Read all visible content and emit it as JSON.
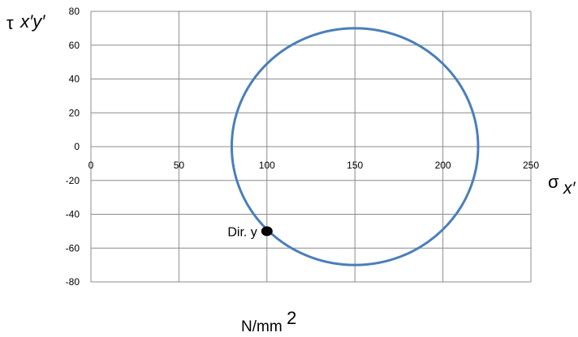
{
  "chart_data": {
    "type": "line",
    "title": "",
    "xlabel": {
      "symbol": "σ",
      "subscript": "x′"
    },
    "ylabel": {
      "symbol": "τ",
      "subscript": "x′y′"
    },
    "unit_label": {
      "base": "N/mm",
      "superscript": "2"
    },
    "xlim": [
      0,
      250
    ],
    "ylim": [
      -80,
      80
    ],
    "x_ticks": [
      0,
      50,
      100,
      150,
      200,
      250
    ],
    "y_ticks": [
      80,
      60,
      40,
      20,
      0,
      -20,
      -40,
      -60,
      -80
    ],
    "grid": true,
    "series": [
      {
        "center": [
          150,
          0
        ],
        "radius": 70,
        "color": "#4A7EBB"
      }
    ],
    "annotations": [
      {
        "text": "Dir. y",
        "x": 100,
        "y": -50,
        "marker_color": "#000000"
      }
    ]
  }
}
